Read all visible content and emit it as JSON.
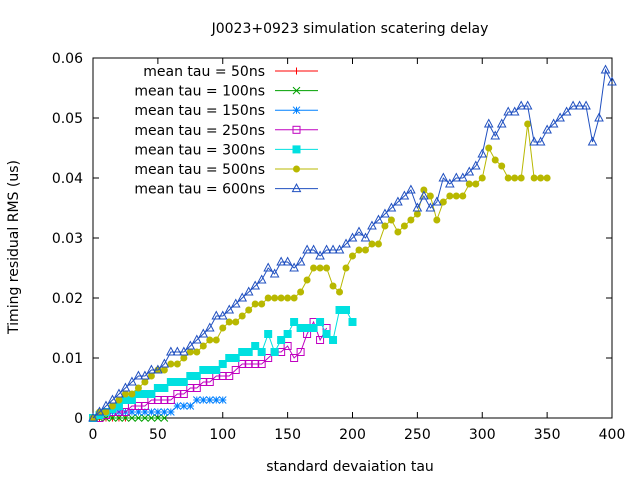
{
  "chart_data": {
    "type": "line",
    "title": "J0023+0923 simulation scatering delay",
    "xlabel": "standard devaiation tau",
    "ylabel": "Timing residual RMS (us)",
    "xlim": [
      0,
      400
    ],
    "ylim": [
      0,
      0.06
    ],
    "xticks": [
      {
        "value": 0,
        "label": "0"
      },
      {
        "value": 50,
        "label": "50"
      },
      {
        "value": 100,
        "label": "100"
      },
      {
        "value": 150,
        "label": "150"
      },
      {
        "value": 200,
        "label": "200"
      },
      {
        "value": 250,
        "label": "250"
      },
      {
        "value": 300,
        "label": "300"
      },
      {
        "value": 350,
        "label": "350"
      },
      {
        "value": 400,
        "label": "400"
      }
    ],
    "yticks": [
      {
        "value": 0,
        "label": "0"
      },
      {
        "value": 0.01,
        "label": "0.01"
      },
      {
        "value": 0.02,
        "label": "0.02"
      },
      {
        "value": 0.03,
        "label": "0.03"
      },
      {
        "value": 0.04,
        "label": "0.04"
      },
      {
        "value": 0.05,
        "label": "0.05"
      },
      {
        "value": 0.06,
        "label": "0.06"
      }
    ],
    "grid": false,
    "legend_position": "top-left",
    "series": [
      {
        "name": "mean tau = 50ns",
        "color": "#ff0000",
        "marker": "plus",
        "x": [
          0,
          5,
          10,
          15,
          20,
          25
        ],
        "y": [
          0,
          0,
          0,
          0,
          0,
          0
        ]
      },
      {
        "name": "mean tau = 100ns",
        "color": "#00a000",
        "marker": "cross",
        "x": [
          0,
          5,
          10,
          15,
          20,
          25,
          30,
          35,
          40,
          45,
          50,
          55
        ],
        "y": [
          0,
          0,
          0,
          0,
          0,
          0,
          0,
          0,
          0,
          0,
          0,
          0
        ]
      },
      {
        "name": "mean tau = 150ns",
        "color": "#0080ff",
        "marker": "star",
        "x": [
          0,
          5,
          10,
          15,
          20,
          25,
          30,
          35,
          40,
          45,
          50,
          55,
          60,
          65,
          70,
          75,
          80,
          85,
          90,
          95,
          100
        ],
        "y": [
          0,
          0.0005,
          0.0008,
          0.001,
          0.001,
          0.001,
          0.001,
          0.001,
          0.001,
          0.001,
          0.001,
          0.001,
          0.001,
          0.002,
          0.002,
          0.002,
          0.003,
          0.003,
          0.003,
          0.003,
          0.003
        ]
      },
      {
        "name": "mean tau = 250ns",
        "color": "#c000c0",
        "marker": "square-open",
        "x": [
          0,
          5,
          10,
          15,
          20,
          25,
          30,
          35,
          40,
          45,
          50,
          55,
          60,
          65,
          70,
          75,
          80,
          85,
          90,
          95,
          100,
          105,
          110,
          115,
          120,
          125,
          130,
          135,
          140,
          145,
          150,
          155,
          160,
          165,
          170,
          175,
          180
        ],
        "y": [
          0,
          0,
          0.0005,
          0.001,
          0.001,
          0.001,
          0.002,
          0.002,
          0.002,
          0.003,
          0.003,
          0.003,
          0.003,
          0.004,
          0.004,
          0.005,
          0.005,
          0.006,
          0.006,
          0.007,
          0.007,
          0.007,
          0.008,
          0.009,
          0.009,
          0.009,
          0.009,
          0.01,
          0.011,
          0.011,
          0.012,
          0.01,
          0.011,
          0.014,
          0.016,
          0.013,
          0.015
        ]
      },
      {
        "name": "mean tau = 300ns",
        "color": "#00e0e0",
        "marker": "square-filled",
        "x": [
          0,
          5,
          10,
          15,
          20,
          25,
          30,
          35,
          40,
          45,
          50,
          55,
          60,
          65,
          70,
          75,
          80,
          85,
          90,
          95,
          100,
          105,
          110,
          115,
          120,
          125,
          130,
          135,
          140,
          145,
          150,
          155,
          160,
          165,
          170,
          175,
          180,
          185,
          190,
          195,
          200
        ],
        "y": [
          0,
          0.0005,
          0.001,
          0.0015,
          0.002,
          0.003,
          0.003,
          0.004,
          0.004,
          0.004,
          0.005,
          0.005,
          0.006,
          0.006,
          0.006,
          0.007,
          0.007,
          0.008,
          0.008,
          0.008,
          0.009,
          0.01,
          0.01,
          0.011,
          0.011,
          0.012,
          0.011,
          0.014,
          0.011,
          0.013,
          0.014,
          0.016,
          0.015,
          0.015,
          0.015,
          0.016,
          0.014,
          0.013,
          0.018,
          0.018,
          0.016
        ]
      },
      {
        "name": "mean tau = 500ns",
        "color": "#b8b800",
        "marker": "circle-filled",
        "x": [
          0,
          5,
          10,
          15,
          20,
          25,
          30,
          35,
          40,
          45,
          50,
          55,
          60,
          65,
          70,
          75,
          80,
          85,
          90,
          95,
          100,
          105,
          110,
          115,
          120,
          125,
          130,
          135,
          140,
          145,
          150,
          155,
          160,
          165,
          170,
          175,
          180,
          185,
          190,
          195,
          200,
          205,
          210,
          215,
          220,
          225,
          230,
          235,
          240,
          245,
          250,
          255,
          260,
          265,
          270,
          275,
          280,
          285,
          290,
          295,
          300,
          305,
          310,
          315,
          320,
          325,
          330,
          335,
          340,
          345,
          350
        ],
        "y": [
          0,
          0.001,
          0.001,
          0.002,
          0.003,
          0.004,
          0.004,
          0.005,
          0.006,
          0.007,
          0.008,
          0.008,
          0.009,
          0.009,
          0.01,
          0.011,
          0.011,
          0.012,
          0.013,
          0.013,
          0.015,
          0.016,
          0.016,
          0.017,
          0.018,
          0.019,
          0.019,
          0.02,
          0.02,
          0.02,
          0.02,
          0.02,
          0.021,
          0.023,
          0.025,
          0.025,
          0.025,
          0.022,
          0.021,
          0.025,
          0.027,
          0.028,
          0.028,
          0.029,
          0.029,
          0.032,
          0.033,
          0.031,
          0.032,
          0.033,
          0.034,
          0.038,
          0.037,
          0.033,
          0.036,
          0.037,
          0.037,
          0.037,
          0.039,
          0.039,
          0.04,
          0.045,
          0.043,
          0.042,
          0.04,
          0.04,
          0.04,
          0.049,
          0.04,
          0.04,
          0.04
        ]
      },
      {
        "name": "mean tau = 600ns",
        "color": "#2050c0",
        "marker": "triangle-open",
        "x": [
          0,
          5,
          10,
          15,
          20,
          25,
          30,
          35,
          40,
          45,
          50,
          55,
          60,
          65,
          70,
          75,
          80,
          85,
          90,
          95,
          100,
          105,
          110,
          115,
          120,
          125,
          130,
          135,
          140,
          145,
          150,
          155,
          160,
          165,
          170,
          175,
          180,
          185,
          190,
          195,
          200,
          205,
          210,
          215,
          220,
          225,
          230,
          235,
          240,
          245,
          250,
          255,
          260,
          265,
          270,
          275,
          280,
          285,
          290,
          295,
          300,
          305,
          310,
          315,
          320,
          325,
          330,
          335,
          340,
          345,
          350,
          355,
          360,
          365,
          370,
          375,
          380,
          385,
          390,
          395,
          400
        ],
        "y": [
          0,
          0.001,
          0.002,
          0.003,
          0.004,
          0.005,
          0.006,
          0.007,
          0.007,
          0.008,
          0.008,
          0.009,
          0.011,
          0.011,
          0.011,
          0.012,
          0.013,
          0.014,
          0.015,
          0.017,
          0.017,
          0.018,
          0.019,
          0.02,
          0.021,
          0.022,
          0.023,
          0.025,
          0.024,
          0.026,
          0.026,
          0.025,
          0.026,
          0.028,
          0.028,
          0.027,
          0.028,
          0.028,
          0.028,
          0.029,
          0.03,
          0.031,
          0.03,
          0.032,
          0.033,
          0.034,
          0.035,
          0.036,
          0.037,
          0.038,
          0.035,
          0.037,
          0.035,
          0.036,
          0.04,
          0.039,
          0.04,
          0.04,
          0.041,
          0.042,
          0.044,
          0.049,
          0.047,
          0.049,
          0.051,
          0.051,
          0.052,
          0.052,
          0.046,
          0.046,
          0.048,
          0.049,
          0.05,
          0.051,
          0.052,
          0.052,
          0.052,
          0.046,
          0.05,
          0.058,
          0.056
        ]
      }
    ]
  }
}
